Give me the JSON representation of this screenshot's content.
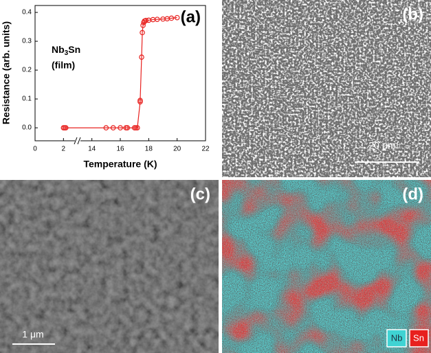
{
  "chart_data": {
    "type": "line",
    "marker": "open-circle",
    "color": "#e8201e",
    "panel_label": "(a)",
    "annotation": {
      "parts": [
        "Nb",
        "3",
        "Sn"
      ],
      "line2": "(film)"
    },
    "x_label": "Temperature (K)",
    "y_label": "Resistance (arb. units)",
    "x": [
      2,
      2.5,
      3,
      15,
      15.5,
      16,
      16.4,
      16.5,
      17,
      17.1,
      17.2,
      17.4,
      17.4,
      17.5,
      17.55,
      17.6,
      17.65,
      17.7,
      17.8,
      18,
      18.3,
      18.6,
      19,
      19.3,
      19.6,
      20
    ],
    "values": [
      0,
      0,
      0,
      0,
      0,
      0,
      0,
      0,
      0,
      0,
      0,
      0.09,
      0.095,
      0.245,
      0.33,
      0.355,
      0.365,
      0.37,
      0.372,
      0.373,
      0.375,
      0.376,
      0.377,
      0.378,
      0.38,
      0.382
    ],
    "xlim": [
      0,
      22
    ],
    "xticks": [
      0,
      2,
      14,
      16,
      18,
      20,
      22
    ],
    "axis_break": [
      2,
      14
    ],
    "ylim": [
      -0.045,
      0.424
    ],
    "yticks": [
      {
        "value": 0,
        "label": "0.0"
      },
      {
        "value": 0.1,
        "label": "0.1"
      },
      {
        "value": 0.2,
        "label": "0.2"
      },
      {
        "value": 0.3,
        "label": "0.3"
      },
      {
        "value": 0.4,
        "label": "0.4"
      }
    ]
  },
  "panels": [
    {
      "label": "(b)",
      "scale_bar": "20 μm"
    },
    {
      "label": "(c)",
      "scale_bar": "1 μm"
    },
    {
      "label": "(d)",
      "legend": [
        "Nb",
        "Sn"
      ]
    }
  ]
}
